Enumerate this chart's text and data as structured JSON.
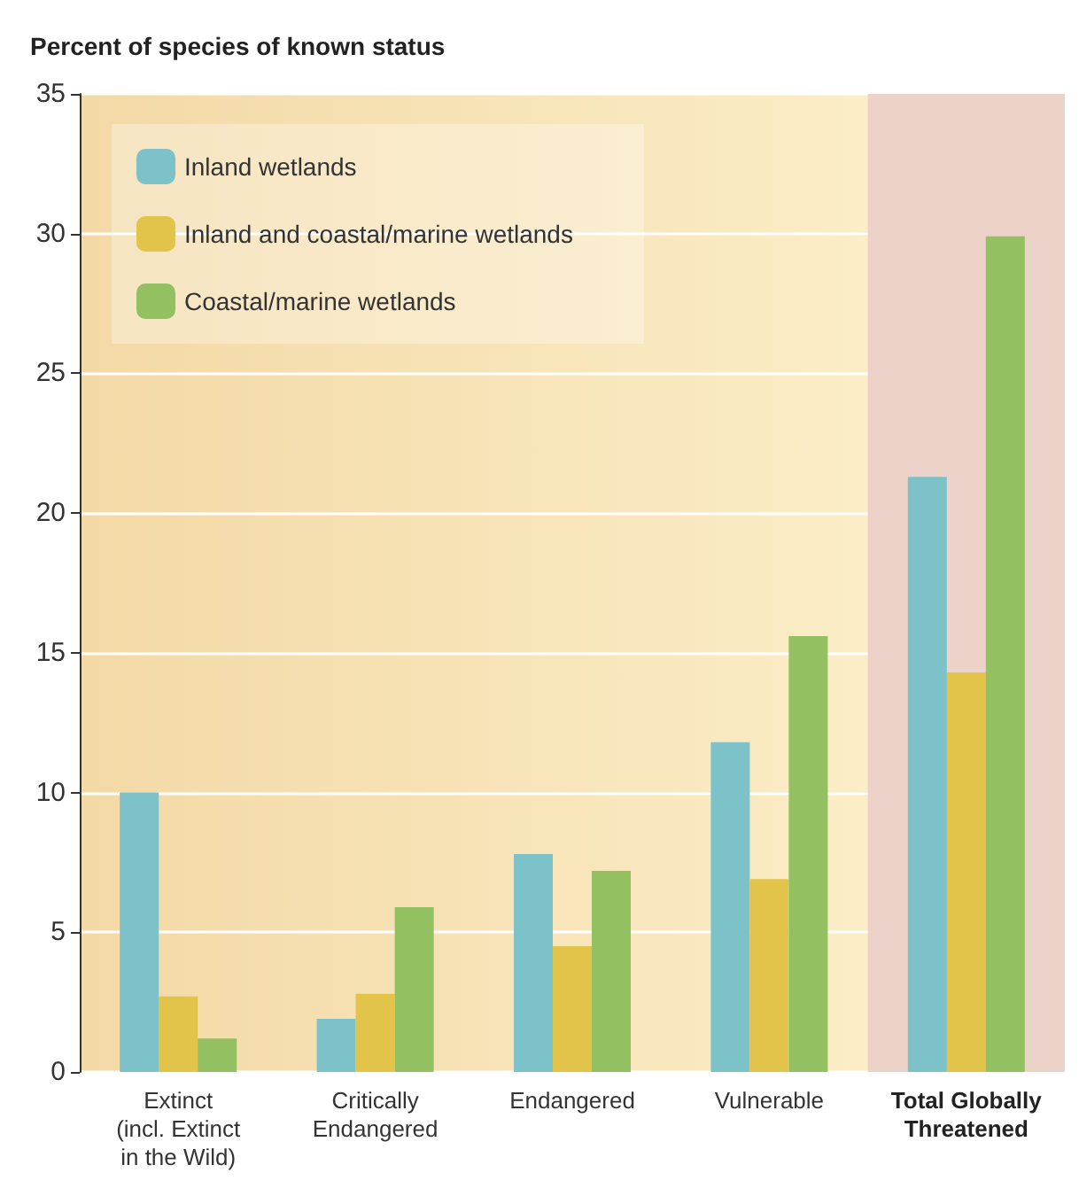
{
  "chart_data": {
    "type": "bar",
    "title": "Percent of species of known status",
    "categories": [
      "Extinct\n(incl. Extinct\nin the Wild)",
      "Critically\nEndangered",
      "Endangered",
      "Vulnerable",
      "Total Globally\nThreatened"
    ],
    "series": [
      {
        "name": "Inland wetlands",
        "color": "#7cc2c8",
        "values": [
          10,
          1.9,
          7.8,
          11.8,
          21.3
        ]
      },
      {
        "name": "Inland and coastal/marine wetlands",
        "color": "#e2c44a",
        "values": [
          2.7,
          2.8,
          4.5,
          6.9,
          14.3
        ]
      },
      {
        "name": "Coastal/marine wetlands",
        "color": "#93c060",
        "values": [
          1.2,
          5.9,
          7.2,
          15.6,
          29.9
        ]
      }
    ],
    "ylim": [
      0,
      35
    ],
    "yticks": [
      0,
      5,
      10,
      15,
      20,
      25,
      30,
      35
    ],
    "grid": "y",
    "legend": "top left",
    "bands": [
      {
        "axis": "x",
        "from": "Total Globally\nThreatened",
        "to": "Total Globally\nThreatened",
        "color": "#ecd2c8"
      }
    ]
  }
}
